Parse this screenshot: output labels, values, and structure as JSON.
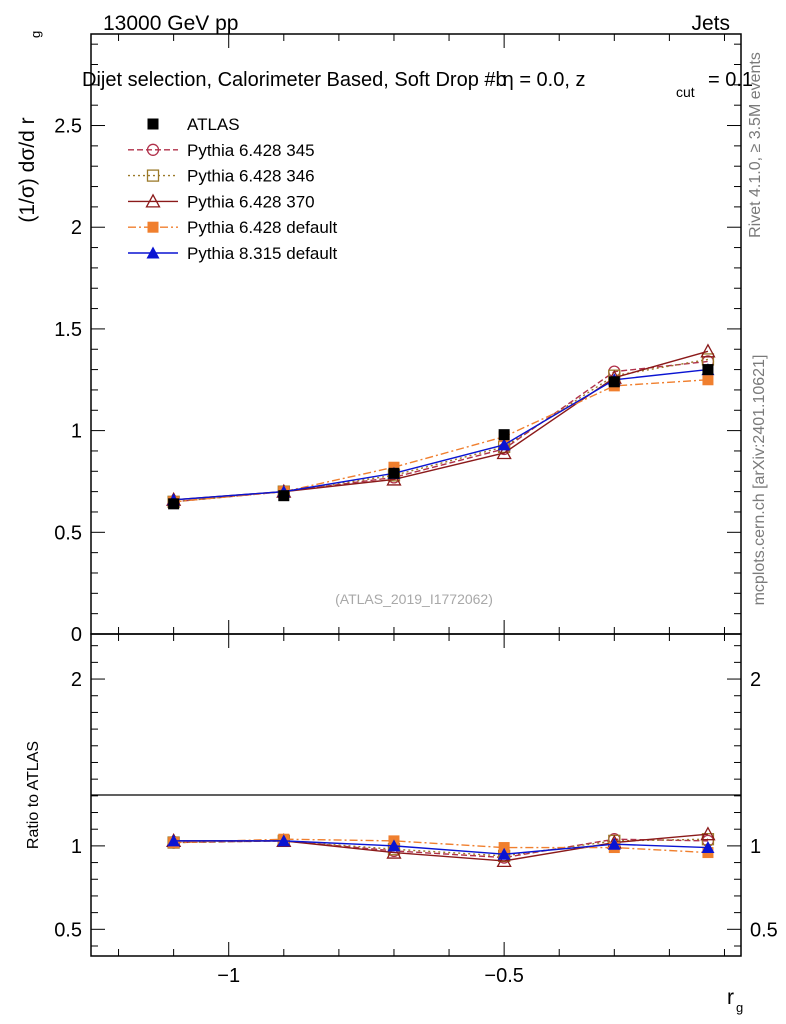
{
  "header": {
    "left": "13000 GeV pp",
    "right": "Jets"
  },
  "plot_title": {
    "main": "Dijet selection, Calorimeter Based, Soft Drop #b",
    "eta": "η = 0.0, z",
    "sub": "cut",
    "tail": "= 0.1"
  },
  "side_labels": {
    "rivet": "Rivet 4.1.0, ≥ 3.5M events",
    "mcplots": "mcplots.cern.ch [arXiv:2401.10621]"
  },
  "watermark": "(ATLAS_2019_I1772062)",
  "chart_data": [
    {
      "type": "line",
      "title": "Dijet selection, Calorimeter Based, Soft Drop #b η = 0.0, z_cut = 0.1",
      "ylabel_main": "(1/σ) dσ/d r",
      "ylabel_sub": "g",
      "ylim": [
        0,
        2.95
      ],
      "xlim": [
        -1.25,
        -0.07
      ],
      "yticks": [
        0,
        0.5,
        1,
        1.5,
        2,
        2.5
      ],
      "ytick_labels": [
        "0",
        "0.5",
        "1",
        "1.5",
        "2",
        "2.5"
      ],
      "x": [
        -1.1,
        -0.9,
        -0.7,
        -0.5,
        -0.3,
        -0.13
      ],
      "series": [
        {
          "name": "ATLAS",
          "color": "#000000",
          "marker": "square-filled",
          "dash": "none",
          "values": [
            0.64,
            0.68,
            0.79,
            0.98,
            1.24,
            1.3
          ]
        },
        {
          "name": "Pythia 6.428 345",
          "color": "#b0304a",
          "marker": "circle-open",
          "dash": "6,3",
          "values": [
            0.65,
            0.7,
            0.77,
            0.91,
            1.29,
            1.34
          ]
        },
        {
          "name": "Pythia 6.428 346",
          "color": "#9c7a2a",
          "marker": "square-open",
          "dash": "2,3",
          "values": [
            0.65,
            0.7,
            0.78,
            0.92,
            1.27,
            1.35
          ]
        },
        {
          "name": "Pythia 6.428 370",
          "color": "#8b1a1a",
          "marker": "triangle-open",
          "dash": "none",
          "values": [
            0.66,
            0.7,
            0.76,
            0.89,
            1.26,
            1.39
          ]
        },
        {
          "name": "Pythia 6.428 default",
          "color": "#f07f2e",
          "marker": "square-filled",
          "dash": "8,3,2,3",
          "values": [
            0.65,
            0.7,
            0.82,
            0.97,
            1.22,
            1.25
          ]
        },
        {
          "name": "Pythia 8.315 default",
          "color": "#0a14d2",
          "marker": "triangle-filled",
          "dash": "none",
          "values": [
            0.66,
            0.7,
            0.79,
            0.93,
            1.25,
            1.3
          ]
        }
      ]
    },
    {
      "type": "line",
      "title": "Ratio to ATLAS",
      "ylabel": "Ratio to ATLAS",
      "xlabel_main": "r",
      "xlabel_sub": "g",
      "ylim": [
        0.34,
        2.27
      ],
      "xlim": [
        -1.25,
        -0.07
      ],
      "yticks": [
        0.5,
        1,
        2
      ],
      "ytick_labels": [
        "0.5",
        "1",
        "2"
      ],
      "xticks": [
        -1,
        -0.5
      ],
      "xtick_labels": [
        "−1",
        "−0.5"
      ],
      "x": [
        -1.1,
        -0.9,
        -0.7,
        -0.5,
        -0.3,
        -0.13
      ],
      "series": [
        {
          "name": "Pythia 6.428 345",
          "values": [
            1.02,
            1.03,
            0.97,
            0.93,
            1.04,
            1.03
          ]
        },
        {
          "name": "Pythia 6.428 346",
          "values": [
            1.02,
            1.03,
            0.98,
            0.94,
            1.03,
            1.04
          ]
        },
        {
          "name": "Pythia 6.428 370",
          "values": [
            1.03,
            1.03,
            0.96,
            0.91,
            1.02,
            1.07
          ]
        },
        {
          "name": "Pythia 6.428 default",
          "values": [
            1.02,
            1.04,
            1.03,
            0.99,
            0.99,
            0.96
          ]
        },
        {
          "name": "Pythia 8.315 default",
          "values": [
            1.03,
            1.03,
            1.0,
            0.95,
            1.01,
            0.99
          ]
        }
      ]
    }
  ]
}
